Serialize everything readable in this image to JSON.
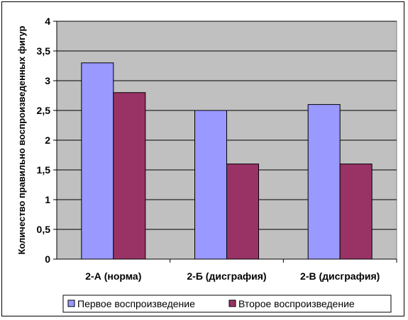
{
  "chart_data": {
    "type": "bar",
    "title": "",
    "xlabel": "",
    "ylabel": "Количество правильно воспроизведенных фигур",
    "categories": [
      "2-А (норма)",
      "2-Б (дисграфия)",
      "2-В (дисграфия)"
    ],
    "series": [
      {
        "name": "Первое воспроизведение",
        "values": [
          3.3,
          2.5,
          2.6
        ],
        "color": "#9999FF"
      },
      {
        "name": "Второе воспроизведение",
        "values": [
          2.8,
          1.6,
          1.6
        ],
        "color": "#993366"
      }
    ],
    "ylim": [
      0,
      4
    ],
    "yticks": [
      "0",
      "0,5",
      "1",
      "1,5",
      "2",
      "2,5",
      "3",
      "3,5",
      "4"
    ],
    "grid": true,
    "plot_background": "#C0C0C0",
    "legend_position": "bottom"
  }
}
